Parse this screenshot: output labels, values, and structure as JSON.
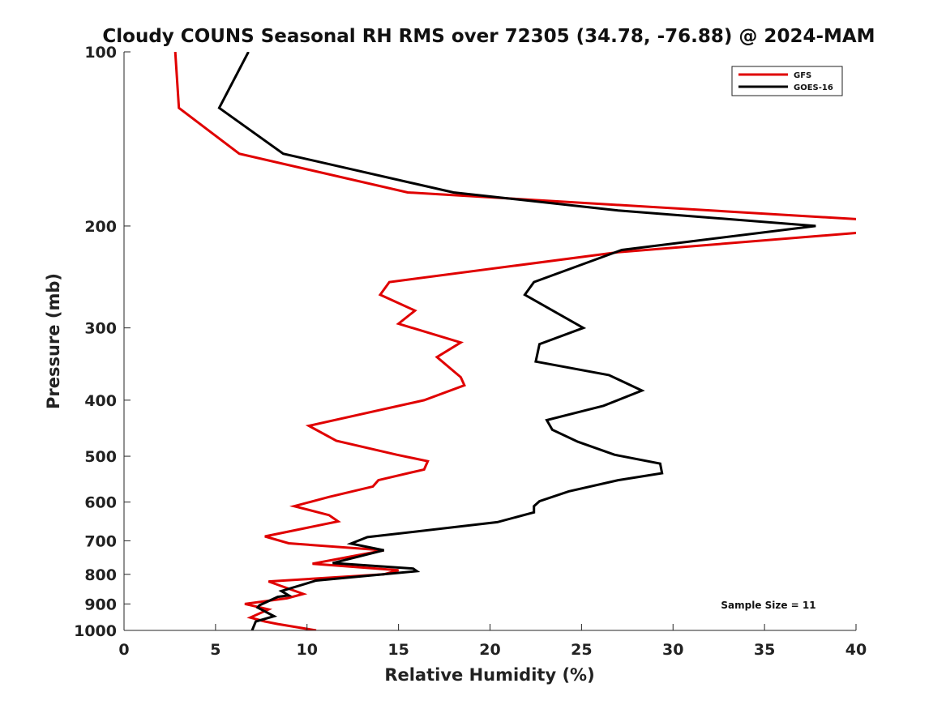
{
  "chart_data": {
    "type": "line",
    "title": "Cloudy COUNS Seasonal RH RMS over 72305 (34.78, -76.88) @ 2024-MAM",
    "xlabel": "Relative Humidity (%)",
    "ylabel": "Pressure (mb)",
    "xlim": [
      0,
      40
    ],
    "ylim": [
      100,
      1000
    ],
    "y_scale": "log",
    "y_direction": "reversed",
    "x_ticks": [
      "0",
      "5",
      "10",
      "15",
      "20",
      "25",
      "30",
      "35",
      "40"
    ],
    "y_ticks": [
      "100",
      "200",
      "300",
      "400",
      "500",
      "600",
      "700",
      "800",
      "900",
      "1000"
    ],
    "legend_location": "top-right",
    "annotation": "Sample Size = 11",
    "series": [
      {
        "name": "GFS",
        "color": "#e00000",
        "points": [
          [
            2.8,
            100
          ],
          [
            3.0,
            125
          ],
          [
            6.3,
            150
          ],
          [
            15.5,
            175
          ],
          [
            40.5,
            195
          ],
          [
            40.5,
            205
          ],
          [
            27.0,
            222
          ],
          [
            14.5,
            250
          ],
          [
            14.0,
            263
          ],
          [
            15.9,
            280
          ],
          [
            15.0,
            295
          ],
          [
            18.4,
            318
          ],
          [
            17.1,
            337
          ],
          [
            18.4,
            365
          ],
          [
            18.6,
            377
          ],
          [
            16.4,
            400
          ],
          [
            10.1,
            443
          ],
          [
            11.6,
            470
          ],
          [
            14.9,
            497
          ],
          [
            16.6,
            510
          ],
          [
            16.4,
            527
          ],
          [
            13.9,
            550
          ],
          [
            13.6,
            564
          ],
          [
            11.2,
            588
          ],
          [
            9.3,
            610
          ],
          [
            11.2,
            632
          ],
          [
            11.7,
            648
          ],
          [
            7.7,
            688
          ],
          [
            9.0,
            707
          ],
          [
            14.2,
            727
          ],
          [
            10.3,
            767
          ],
          [
            15.0,
            787
          ],
          [
            14.2,
            800
          ],
          [
            7.9,
            823
          ],
          [
            9.8,
            865
          ],
          [
            8.9,
            880
          ],
          [
            6.6,
            900
          ],
          [
            7.9,
            920
          ],
          [
            6.9,
            950
          ],
          [
            7.7,
            965
          ],
          [
            8.4,
            975
          ],
          [
            10.5,
            1000
          ]
        ]
      },
      {
        "name": "GOES-16",
        "color": "#000000",
        "points": [
          [
            6.8,
            100
          ],
          [
            5.2,
            125
          ],
          [
            8.7,
            150
          ],
          [
            18.0,
            175
          ],
          [
            27.0,
            188
          ],
          [
            37.8,
            200
          ],
          [
            27.2,
            220
          ],
          [
            22.4,
            250
          ],
          [
            21.9,
            263
          ],
          [
            25.1,
            300
          ],
          [
            22.7,
            320
          ],
          [
            22.5,
            343
          ],
          [
            26.5,
            362
          ],
          [
            28.3,
            385
          ],
          [
            26.2,
            409
          ],
          [
            23.1,
            433
          ],
          [
            23.4,
            450
          ],
          [
            24.8,
            472
          ],
          [
            26.8,
            497
          ],
          [
            29.3,
            515
          ],
          [
            29.4,
            535
          ],
          [
            27.0,
            550
          ],
          [
            24.3,
            575
          ],
          [
            22.7,
            598
          ],
          [
            22.4,
            610
          ],
          [
            22.4,
            625
          ],
          [
            20.4,
            650
          ],
          [
            13.3,
            690
          ],
          [
            12.4,
            708
          ],
          [
            14.2,
            727
          ],
          [
            11.4,
            765
          ],
          [
            15.8,
            782
          ],
          [
            16.0,
            790
          ],
          [
            10.5,
            820
          ],
          [
            8.6,
            855
          ],
          [
            9.0,
            870
          ],
          [
            8.4,
            875
          ],
          [
            7.4,
            905
          ],
          [
            7.3,
            913
          ],
          [
            8.2,
            945
          ],
          [
            7.2,
            965
          ],
          [
            7.0,
            1000
          ]
        ]
      }
    ]
  }
}
